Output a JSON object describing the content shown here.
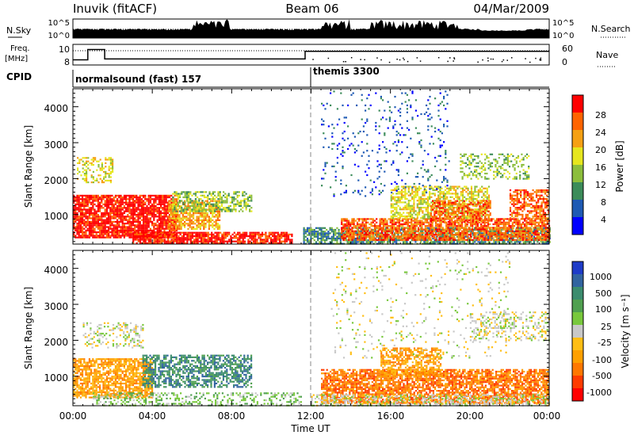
{
  "header": {
    "station": "Inuvik (fitACF)",
    "beam": "Beam 06",
    "date": "04/Mar/2009"
  },
  "noise_panel": {
    "left_label": "N.Sky",
    "right_label": "N.Search",
    "left_ticks": [
      "10^5",
      "10^0"
    ],
    "right_ticks": [
      "10^5",
      "10^0"
    ]
  },
  "freq_panel": {
    "left_label_top": "Freq.",
    "left_label_bottom": "[MHz]",
    "right_label": "Nave",
    "left_ticks": [
      "10",
      "8"
    ],
    "right_ticks": [
      "60",
      "0"
    ]
  },
  "cpid": {
    "label": "CPID",
    "segments": [
      {
        "name": "normalsound (fast) 157",
        "start_hour": 0
      },
      {
        "name": "themis 3300",
        "start_hour": 12
      }
    ]
  },
  "x_axis": {
    "label": "Time UT",
    "ticks": [
      "00:00",
      "04:00",
      "08:00",
      "12:00",
      "16:00",
      "20:00",
      "00:00"
    ],
    "range_hours": [
      0,
      24
    ]
  },
  "power_panel": {
    "ylabel": "Slant Range [km]",
    "yticks": [
      "1000",
      "2000",
      "3000",
      "4000"
    ],
    "colorbar_label": "Power [dB]",
    "colorbar_ticks": [
      "4",
      "8",
      "12",
      "16",
      "20",
      "24",
      "28"
    ],
    "colors": [
      "#0000ff",
      "#1e5ab4",
      "#3c8c5a",
      "#8cbe3c",
      "#e6e61e",
      "#f5a014",
      "#ff6400",
      "#ff0000"
    ]
  },
  "velocity_panel": {
    "ylabel": "Slant Range [km]",
    "yticks": [
      "1000",
      "2000",
      "3000",
      "4000"
    ],
    "colorbar_label": "Velocity [m s⁻¹]",
    "colorbar_ticks": [
      "1000",
      "500",
      "100",
      "25",
      "-25",
      "-100",
      "-500",
      "-1000"
    ],
    "colors": [
      "#1e3cc8",
      "#3264a0",
      "#3c8c6e",
      "#50a050",
      "#78c83c",
      "#c8c8c8",
      "#ffbe14",
      "#ffa000",
      "#ff7800",
      "#ff3c00",
      "#ff0000"
    ]
  },
  "chart_data": {
    "type": "heatmap",
    "x_range_hours": [
      0,
      24
    ],
    "y_range_km": [
      180,
      4500
    ],
    "noise": {
      "sky_log_baseline": 0.9,
      "search_log_baseline": 0.9
    },
    "frequency": {
      "segments": [
        {
          "t0": 0.0,
          "t1": 0.75,
          "mhz": 8.4
        },
        {
          "t0": 0.75,
          "t1": 1.6,
          "mhz": 9.6
        },
        {
          "t0": 1.6,
          "t1": 11.7,
          "mhz": 8.5
        },
        {
          "t0": 11.7,
          "t1": 24.0,
          "mhz": 9.4
        }
      ],
      "nave_dotted_level": 35
    },
    "power_regions": [
      {
        "t0": 0.0,
        "t1": 5.2,
        "r0": 350,
        "r1": 1550,
        "level": 7,
        "density": 0.85
      },
      {
        "t0": 4.8,
        "t1": 7.4,
        "r0": 600,
        "r1": 1400,
        "level": 5,
        "density": 0.7
      },
      {
        "t0": 5.0,
        "t1": 9.0,
        "r0": 1100,
        "r1": 1650,
        "level": 3,
        "density": 0.55
      },
      {
        "t0": 3.0,
        "t1": 11.0,
        "r0": 200,
        "r1": 520,
        "level": 7,
        "density": 0.8
      },
      {
        "t0": 0.2,
        "t1": 2.0,
        "r0": 1900,
        "r1": 2600,
        "level": 4,
        "density": 0.35
      },
      {
        "t0": 11.6,
        "t1": 24.0,
        "r0": 200,
        "r1": 650,
        "level": 2,
        "density": 0.7
      },
      {
        "t0": 13.5,
        "t1": 24.0,
        "r0": 300,
        "r1": 900,
        "level": 6,
        "density": 0.75
      },
      {
        "t0": 16.0,
        "t1": 21.0,
        "r0": 900,
        "r1": 1800,
        "level": 4,
        "density": 0.6
      },
      {
        "t0": 18.0,
        "t1": 21.0,
        "r0": 800,
        "r1": 1400,
        "level": 6,
        "density": 0.6
      },
      {
        "t0": 12.5,
        "t1": 19.0,
        "r0": 1500,
        "r1": 4450,
        "level": 1,
        "density": 0.08
      },
      {
        "t0": 19.5,
        "t1": 23.0,
        "r0": 2000,
        "r1": 2700,
        "level": 3,
        "density": 0.35
      },
      {
        "t0": 22.0,
        "t1": 24.0,
        "r0": 900,
        "r1": 1700,
        "level": 6,
        "density": 0.6
      }
    ],
    "velocity_regions": [
      {
        "t0": 0.0,
        "t1": 4.0,
        "r0": 400,
        "r1": 1500,
        "level": 7,
        "density": 0.75
      },
      {
        "t0": 3.5,
        "t1": 9.0,
        "r0": 700,
        "r1": 1600,
        "level": 2,
        "density": 0.6
      },
      {
        "t0": 1.0,
        "t1": 11.5,
        "r0": 200,
        "r1": 550,
        "level": 4,
        "density": 0.35
      },
      {
        "t0": 0.5,
        "t1": 3.5,
        "r0": 1800,
        "r1": 2500,
        "level": 5,
        "density": 0.3
      },
      {
        "t0": 12.5,
        "t1": 24.0,
        "r0": 250,
        "r1": 1200,
        "level": 8,
        "density": 0.75
      },
      {
        "t0": 15.5,
        "t1": 18.5,
        "r0": 1000,
        "r1": 1800,
        "level": 7,
        "density": 0.6
      },
      {
        "t0": 12.0,
        "t1": 24.0,
        "r0": 200,
        "r1": 500,
        "level": 5,
        "density": 0.5
      },
      {
        "t0": 13.0,
        "t1": 22.0,
        "r0": 1500,
        "r1": 4450,
        "level": 5,
        "density": 0.06
      },
      {
        "t0": 20.0,
        "t1": 24.0,
        "r0": 2000,
        "r1": 2800,
        "level": 5,
        "density": 0.3
      }
    ]
  }
}
